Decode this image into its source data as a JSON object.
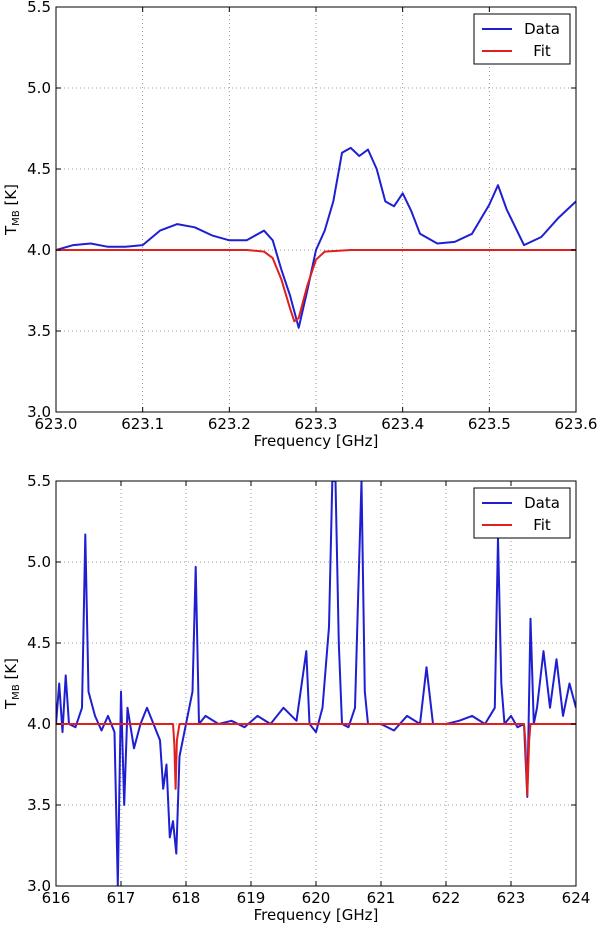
{
  "chart_data": [
    {
      "type": "line",
      "xlabel": "Frequency [GHz]",
      "ylabel": "T",
      "ylabel_sub": "MB",
      "ylabel_unit": " [K]",
      "xlim": [
        623.0,
        623.6
      ],
      "ylim": [
        3.0,
        5.5
      ],
      "xticks": [
        "623.0",
        "623.1",
        "623.2",
        "623.3",
        "623.4",
        "623.5",
        "623.6"
      ],
      "xtick_values": [
        623.0,
        623.1,
        623.2,
        623.3,
        623.4,
        623.5,
        623.6
      ],
      "yticks": [
        "3.0",
        "3.5",
        "4.0",
        "4.5",
        "5.0",
        "5.5"
      ],
      "ytick_values": [
        3.0,
        3.5,
        4.0,
        4.5,
        5.0,
        5.5
      ],
      "grid": true,
      "legend": "top-right",
      "series": [
        {
          "name": "Data",
          "color": "#1f1fd2",
          "x": [
            623.0,
            623.02,
            623.04,
            623.06,
            623.08,
            623.1,
            623.12,
            623.14,
            623.16,
            623.18,
            623.2,
            623.22,
            623.24,
            623.25,
            623.26,
            623.27,
            623.28,
            623.29,
            623.3,
            623.31,
            623.32,
            623.33,
            623.34,
            623.35,
            623.36,
            623.37,
            623.38,
            623.39,
            623.4,
            623.41,
            623.42,
            623.44,
            623.46,
            623.48,
            623.5,
            623.51,
            623.52,
            623.54,
            623.56,
            623.58,
            623.6
          ],
          "y": [
            4.0,
            4.03,
            4.04,
            4.02,
            4.02,
            4.03,
            4.12,
            4.16,
            4.14,
            4.09,
            4.06,
            4.06,
            4.12,
            4.06,
            3.88,
            3.72,
            3.52,
            3.75,
            4.0,
            4.12,
            4.3,
            4.6,
            4.63,
            4.58,
            4.62,
            4.5,
            4.3,
            4.27,
            4.35,
            4.24,
            4.1,
            4.04,
            4.05,
            4.1,
            4.28,
            4.4,
            4.25,
            4.03,
            4.08,
            4.2,
            4.3
          ]
        },
        {
          "name": "Fit",
          "color": "#e01f1f",
          "x": [
            623.0,
            623.22,
            623.24,
            623.25,
            623.26,
            623.27,
            623.275,
            623.28,
            623.29,
            623.3,
            623.31,
            623.34,
            623.6
          ],
          "y": [
            4.0,
            4.0,
            3.99,
            3.95,
            3.82,
            3.64,
            3.56,
            3.58,
            3.78,
            3.94,
            3.99,
            4.0,
            4.0
          ]
        }
      ]
    },
    {
      "type": "line",
      "xlabel": "Frequency [GHz]",
      "ylabel": "T",
      "ylabel_sub": "MB",
      "ylabel_unit": " [K]",
      "xlim": [
        616,
        624
      ],
      "ylim": [
        3.0,
        5.5
      ],
      "xticks": [
        "616",
        "617",
        "618",
        "619",
        "620",
        "621",
        "622",
        "623",
        "624"
      ],
      "xtick_values": [
        616,
        617,
        618,
        619,
        620,
        621,
        622,
        623,
        624
      ],
      "yticks": [
        "3.0",
        "3.5",
        "4.0",
        "4.5",
        "5.0",
        "5.5"
      ],
      "ytick_values": [
        3.0,
        3.5,
        4.0,
        4.5,
        5.0,
        5.5
      ],
      "grid": true,
      "legend": "top-right",
      "series": [
        {
          "name": "Data",
          "color": "#1f1fd2",
          "x": [
            616.0,
            616.05,
            616.1,
            616.15,
            616.2,
            616.3,
            616.4,
            616.45,
            616.5,
            616.6,
            616.7,
            616.8,
            616.9,
            616.95,
            617.0,
            617.05,
            617.1,
            617.2,
            617.3,
            617.4,
            617.5,
            617.6,
            617.65,
            617.7,
            617.75,
            617.8,
            617.85,
            617.9,
            618.0,
            618.1,
            618.15,
            618.2,
            618.3,
            618.5,
            618.7,
            618.9,
            619.1,
            619.3,
            619.5,
            619.7,
            619.85,
            619.9,
            620.0,
            620.1,
            620.2,
            620.25,
            620.3,
            620.35,
            620.4,
            620.5,
            620.6,
            620.65,
            620.7,
            620.75,
            620.8,
            621.0,
            621.2,
            621.4,
            621.6,
            621.7,
            621.8,
            622.0,
            622.2,
            622.4,
            622.6,
            622.75,
            622.8,
            622.85,
            622.9,
            623.0,
            623.1,
            623.2,
            623.25,
            623.3,
            623.35,
            623.4,
            623.5,
            623.6,
            623.7,
            623.8,
            623.9,
            624.0
          ],
          "y": [
            4.0,
            4.25,
            3.95,
            4.3,
            4.0,
            3.98,
            4.1,
            5.17,
            4.2,
            4.05,
            3.96,
            4.05,
            3.95,
            3.0,
            4.2,
            3.5,
            4.1,
            3.85,
            4.0,
            4.1,
            4.0,
            3.9,
            3.6,
            3.75,
            3.3,
            3.4,
            3.2,
            3.8,
            4.0,
            4.2,
            4.97,
            4.0,
            4.05,
            4.0,
            4.02,
            3.98,
            4.05,
            4.0,
            4.1,
            4.02,
            4.45,
            4.0,
            3.95,
            4.1,
            4.6,
            5.5,
            5.5,
            4.5,
            4.0,
            3.98,
            4.1,
            4.8,
            5.5,
            4.2,
            4.0,
            4.0,
            3.96,
            4.05,
            4.0,
            4.35,
            4.0,
            4.0,
            4.02,
            4.05,
            4.0,
            4.1,
            5.15,
            4.25,
            4.0,
            4.05,
            3.98,
            4.0,
            3.55,
            4.65,
            4.0,
            4.1,
            4.45,
            4.1,
            4.4,
            4.05,
            4.25,
            4.1
          ]
        },
        {
          "name": "Fit",
          "color": "#e01f1f",
          "x": [
            616.0,
            617.8,
            617.82,
            617.84,
            617.86,
            617.9,
            623.2,
            623.22,
            623.25,
            623.28,
            623.3,
            624.0
          ],
          "y": [
            4.0,
            4.0,
            3.88,
            3.6,
            3.9,
            4.0,
            4.0,
            3.9,
            3.56,
            3.9,
            4.0,
            4.0
          ]
        }
      ]
    }
  ]
}
